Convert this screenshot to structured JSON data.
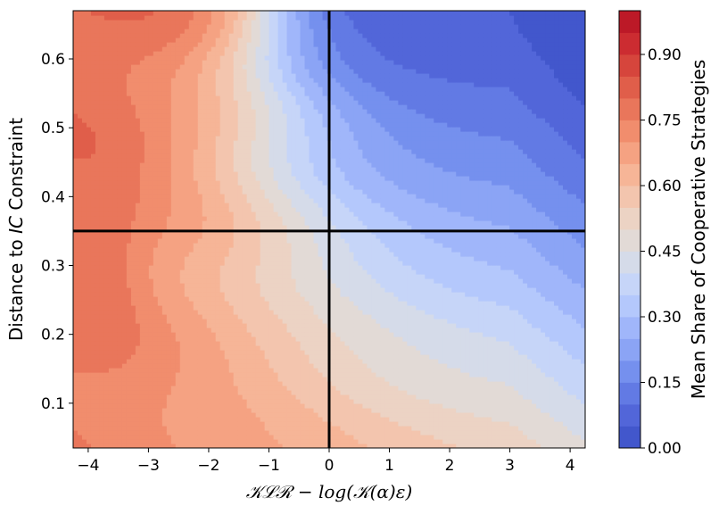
{
  "chart_data": {
    "type": "heatmap",
    "subtype": "filled-contour",
    "xlabel": "𝒦ℒℛ − log(𝒦(α)ε)",
    "ylabel_parts": [
      "Distance to ",
      "IC",
      " Constraint"
    ],
    "xlim": [
      -4.25,
      4.25
    ],
    "ylim": [
      0.035,
      0.67
    ],
    "xticks": [
      -4,
      -3,
      -2,
      -1,
      0,
      1,
      2,
      3,
      4
    ],
    "xtick_labels": [
      "−4",
      "−3",
      "−2",
      "−1",
      "0",
      "1",
      "2",
      "3",
      "4"
    ],
    "yticks": [
      0.1,
      0.2,
      0.3,
      0.4,
      0.5,
      0.6
    ],
    "ytick_labels": [
      "0.1",
      "0.2",
      "0.3",
      "0.4",
      "0.5",
      "0.6"
    ],
    "reference_lines": {
      "vertical_x": 0,
      "horizontal_y": 0.35
    },
    "grid": false,
    "colorbar": {
      "label": "Mean Share of Cooperative Strategies",
      "colormap": "coolwarm",
      "range": [
        0,
        1
      ],
      "levels": 20,
      "ticks": [
        0,
        0.15,
        0.3,
        0.45,
        0.6,
        0.75,
        0.9
      ],
      "tick_labels": [
        "0.00",
        "0.15",
        "0.30",
        "0.45",
        "0.60",
        "0.75",
        "0.90"
      ],
      "colors": [
        "#4257cc",
        "#5266d9",
        "#627ae4",
        "#7590ee",
        "#8ba4f5",
        "#a0b6fa",
        "#b4c8fc",
        "#c6d5f8",
        "#d5dbe9",
        "#e2dad6",
        "#ecd3c4",
        "#f3c5ae",
        "#f6b597",
        "#f5a282",
        "#f18d6d",
        "#e9765b",
        "#e05e4a",
        "#d6453c",
        "#cc2c31",
        "#bc1927"
      ]
    },
    "field_description": "share is high (red, ~0.75-0.9) for x < -1.5, transitions near x = -1 to 0, low (blue, ~0.05) for x > 1 at high distance; at low distance the right side stays near 0.5"
  }
}
